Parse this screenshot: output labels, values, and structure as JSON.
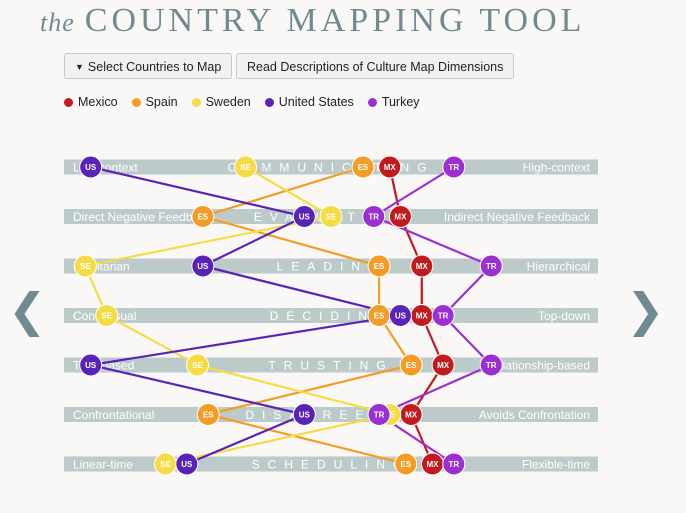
{
  "title": {
    "prefix": "the",
    "main": "COUNTRY MAPPING TOOL"
  },
  "buttons": {
    "select_countries": "Select Countries to Map",
    "read_descriptions": "Read Descriptions of Culture Map Dimensions"
  },
  "icons": {
    "caret": "caret-down-icon",
    "prev": "chevron-left-icon",
    "next": "chevron-right-icon"
  },
  "colors": {
    "bar": "#bccaca",
    "accent": "#6f8a90"
  },
  "countries": [
    {
      "code": "MX",
      "name": "Mexico",
      "color": "#c21a1f"
    },
    {
      "code": "ES",
      "name": "Spain",
      "color": "#f39c26"
    },
    {
      "code": "SE",
      "name": "Sweden",
      "color": "#f5dc45"
    },
    {
      "code": "US",
      "name": "United States",
      "color": "#5a23b8"
    },
    {
      "code": "TR",
      "name": "Turkey",
      "color": "#9b30d0"
    }
  ],
  "chart_data": {
    "type": "scatter",
    "scale": [
      0,
      100
    ],
    "dimensions": [
      {
        "name": "COMMUNICATING",
        "left": "Low-context",
        "right": "High-context",
        "values": {
          "US": 5,
          "SE": 34,
          "ES": 56,
          "MX": 61,
          "TR": 73
        }
      },
      {
        "name": "EVALUATING",
        "left": "Direct Negative Feedback",
        "right": "Indirect Negative Feedback",
        "values": {
          "ES": 26,
          "US": 45,
          "SE": 50,
          "TR": 58,
          "MX": 63
        }
      },
      {
        "name": "LEADING",
        "left": "Egalitarian",
        "right": "Hierarchical",
        "values": {
          "SE": 4,
          "US": 26,
          "ES": 59,
          "MX": 67,
          "TR": 80
        }
      },
      {
        "name": "DECIDING",
        "left": "Consensual",
        "right": "Top-down",
        "values": {
          "SE": 8,
          "ES": 59,
          "US": 63,
          "MX": 67,
          "TR": 71
        }
      },
      {
        "name": "TRUSTING",
        "left": "Task-based",
        "right": "Relationship-based",
        "values": {
          "US": 5,
          "SE": 25,
          "ES": 65,
          "MX": 71,
          "TR": 80
        }
      },
      {
        "name": "DISAGREEING",
        "left": "Confrontational",
        "right": "Avoids Confrontation",
        "values": {
          "ES": 27,
          "US": 45,
          "SE": 61,
          "TR": 59,
          "MX": 65
        }
      },
      {
        "name": "SCHEDULING",
        "left": "Linear-time",
        "right": "Flexible-time",
        "values": {
          "SE": 19,
          "US": 23,
          "ES": 64,
          "MX": 69,
          "TR": 73
        }
      }
    ]
  }
}
